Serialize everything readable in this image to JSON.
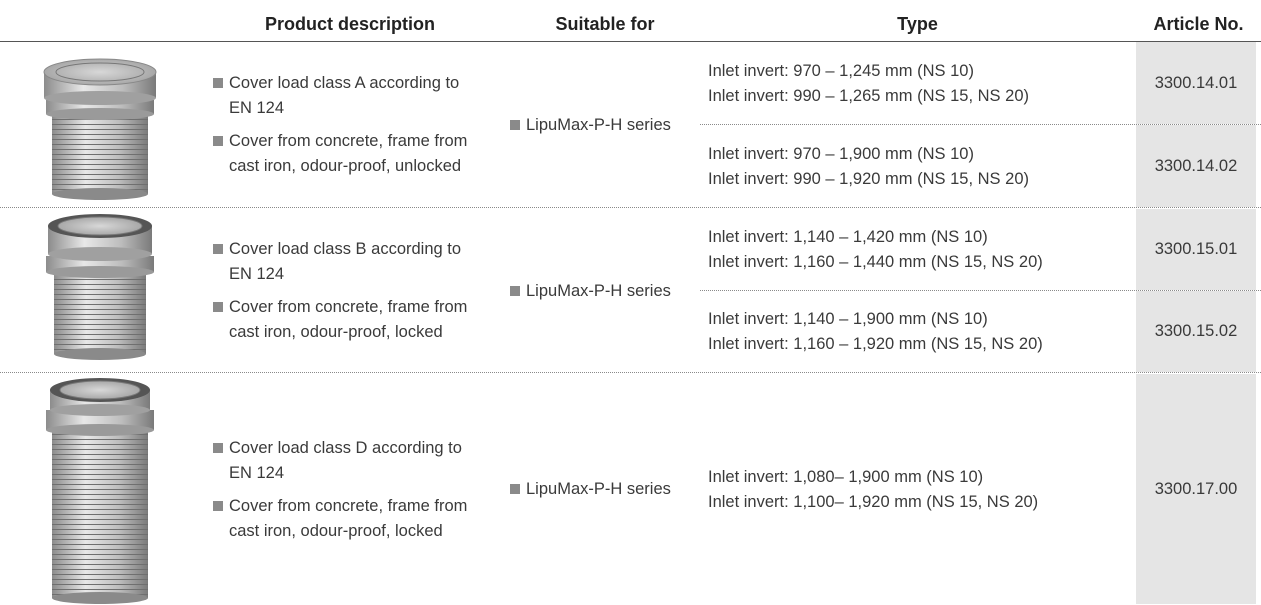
{
  "table": {
    "columns": [
      "Product description",
      "Suitable for",
      "Type",
      "Article No."
    ],
    "rows": [
      {
        "description": [
          "Cover load class A according to EN 124",
          "Cover from concrete, frame from cast iron, odour-proof, unlocked"
        ],
        "suitable_for": "LipuMax-P-H series",
        "types": [
          {
            "lines": [
              "Inlet invert: 970 – 1,245 mm (NS 10)",
              "Inlet invert: 990 – 1,265 mm (NS 15, NS 20)"
            ],
            "article": "3300.14.01"
          },
          {
            "lines": [
              "Inlet invert: 970 – 1,900 mm (NS 10)",
              "Inlet invert: 990 – 1,920 mm (NS 15, NS 20)"
            ],
            "article": "3300.14.02"
          }
        ]
      },
      {
        "description": [
          "Cover load class B according to EN 124",
          "Cover from concrete, frame from cast iron, odour-proof, locked"
        ],
        "suitable_for": "LipuMax-P-H series",
        "types": [
          {
            "lines": [
              "Inlet invert: 1,140 – 1,420 mm (NS 10)",
              "Inlet invert: 1,160 – 1,440 mm (NS 15, NS 20)"
            ],
            "article": "3300.15.01"
          },
          {
            "lines": [
              "Inlet invert: 1,140 – 1,900 mm (NS 10)",
              "Inlet invert: 1,160 – 1,920 mm (NS 15, NS 20)"
            ],
            "article": "3300.15.02"
          }
        ]
      },
      {
        "description": [
          "Cover load class D according to EN 124",
          "Cover from concrete, frame from cast iron, odour-proof, locked"
        ],
        "suitable_for": "LipuMax-P-H series",
        "types": [
          {
            "lines": [
              "Inlet invert: 1,080– 1,900 mm (NS 10)",
              "Inlet invert: 1,100– 1,920 mm (NS 15, NS 20)"
            ],
            "article": "3300.17.00"
          }
        ]
      }
    ]
  }
}
